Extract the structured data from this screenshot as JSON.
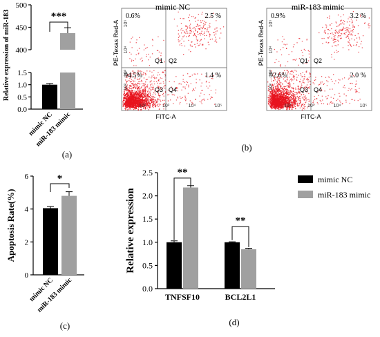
{
  "panels": {
    "a": {
      "label": "(a)"
    },
    "b": {
      "label": "(b)"
    },
    "c": {
      "label": "(c)"
    },
    "d": {
      "label": "(d)"
    }
  },
  "chart_data": [
    {
      "id": "a",
      "type": "bar",
      "ylabel": "Relative expression of miR-183",
      "categories": [
        "mimic NC",
        "miR-183 mimic"
      ],
      "values": [
        1.0,
        437
      ],
      "errors": [
        0.05,
        12
      ],
      "colors": [
        "#000000",
        "#a0a0a0"
      ],
      "axis_broken": true,
      "lower_range": [
        0,
        1.5
      ],
      "upper_range": [
        400,
        500
      ],
      "lower_ticks": [
        "0.0",
        "0.5",
        "1.0",
        "1.5"
      ],
      "upper_ticks": [
        "400",
        "450",
        "500"
      ],
      "significance": "***"
    },
    {
      "id": "b1",
      "type": "scatter",
      "title": "mimic NC",
      "xlabel": "FITC-A",
      "ylabel": "PE-Texas Red-A",
      "quadrants": {
        "Q1": {
          "label": "Q1",
          "percent": "0.6%"
        },
        "Q2": {
          "label": "Q2",
          "percent": "2.5 %"
        },
        "Q3": {
          "label": "Q3",
          "percent": "94.5%"
        },
        "Q4": {
          "label": "Q4",
          "percent": "1.4 %"
        }
      },
      "x_ticks": [
        "10²",
        "10³",
        "10⁴",
        "10⁵"
      ],
      "y_ticks": [
        "10²",
        "10³",
        "10⁴",
        "10⁵"
      ],
      "point_color": "#e8141e"
    },
    {
      "id": "b2",
      "type": "scatter",
      "title": "miR-183 mimic",
      "xlabel": "FITC-A",
      "ylabel": "PE-Texas Red-A",
      "quadrants": {
        "Q1": {
          "label": "Q1",
          "percent": "0.9%"
        },
        "Q2": {
          "label": "Q2",
          "percent": "3.2 %"
        },
        "Q3": {
          "label": "Q3",
          "percent": "92.6%"
        },
        "Q4": {
          "label": "Q4",
          "percent": "2.0 %"
        }
      },
      "x_ticks": [
        "10²",
        "10³",
        "10⁴",
        "10⁵"
      ],
      "y_ticks": [
        "10²",
        "10³",
        "10⁴",
        "10⁵"
      ],
      "point_color": "#e8141e"
    },
    {
      "id": "c",
      "type": "bar",
      "ylabel": "Apoptosis Rate(%)",
      "categories": [
        "mimic NC",
        "miR-183 mimic"
      ],
      "values": [
        4.05,
        4.8
      ],
      "errors": [
        0.1,
        0.25
      ],
      "colors": [
        "#000000",
        "#a0a0a0"
      ],
      "ylim": [
        0,
        6
      ],
      "yticks": [
        "0",
        "2",
        "4",
        "6"
      ],
      "significance": "*"
    },
    {
      "id": "d",
      "type": "bar",
      "ylabel": "Relative expression",
      "categories": [
        "TNFSF10",
        "BCL2L1"
      ],
      "series": [
        {
          "name": "mimic NC",
          "values": [
            1.0,
            1.0
          ],
          "errors": [
            0.03,
            0.01
          ],
          "color": "#000000"
        },
        {
          "name": "miR-183 mimic",
          "values": [
            2.18,
            0.85
          ],
          "errors": [
            0.04,
            0.02
          ],
          "color": "#a0a0a0"
        }
      ],
      "ylim": [
        0,
        2.5
      ],
      "yticks": [
        "0.0",
        "0.5",
        "1.0",
        "1.5",
        "2.0",
        "2.5"
      ],
      "significance": [
        "**",
        "**"
      ],
      "legend_position": "top-right"
    }
  ]
}
